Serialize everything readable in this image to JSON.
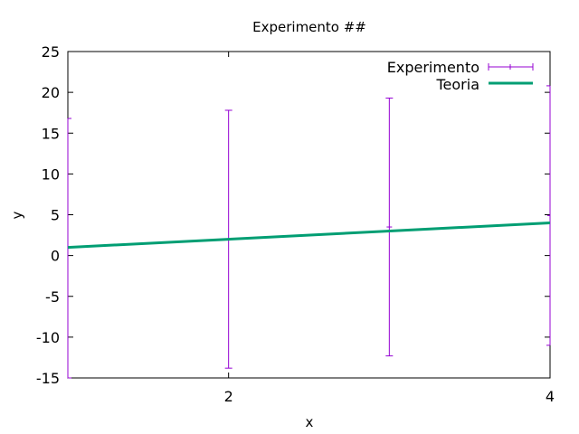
{
  "colors": {
    "experiment": "#9400d3",
    "theory": "#009e73",
    "frame": "#000000"
  },
  "chart_data": {
    "type": "line",
    "title": "Experimento ##",
    "xlabel": "x",
    "ylabel": "y",
    "xlim": [
      1,
      4
    ],
    "ylim": [
      -15,
      25
    ],
    "xticks": [
      2,
      4
    ],
    "yticks": [
      -15,
      -10,
      -5,
      0,
      5,
      10,
      15,
      20,
      25
    ],
    "grid": false,
    "legend_position": "top-right",
    "series": [
      {
        "name": "Experimento",
        "kind": "errorbars",
        "points": [
          {
            "x": 1,
            "y": 1.0,
            "ylow": -15.0,
            "yhigh": 16.8
          },
          {
            "x": 2,
            "y": 2.0,
            "ylow": -13.8,
            "yhigh": 17.8
          },
          {
            "x": 3,
            "y": 3.5,
            "ylow": -12.3,
            "yhigh": 19.3
          },
          {
            "x": 4,
            "y": 4.9,
            "ylow": -11.0,
            "yhigh": 20.8
          }
        ]
      },
      {
        "name": "Teoria",
        "kind": "line",
        "points": [
          {
            "x": 1,
            "y": 1
          },
          {
            "x": 4,
            "y": 4
          }
        ]
      }
    ]
  }
}
